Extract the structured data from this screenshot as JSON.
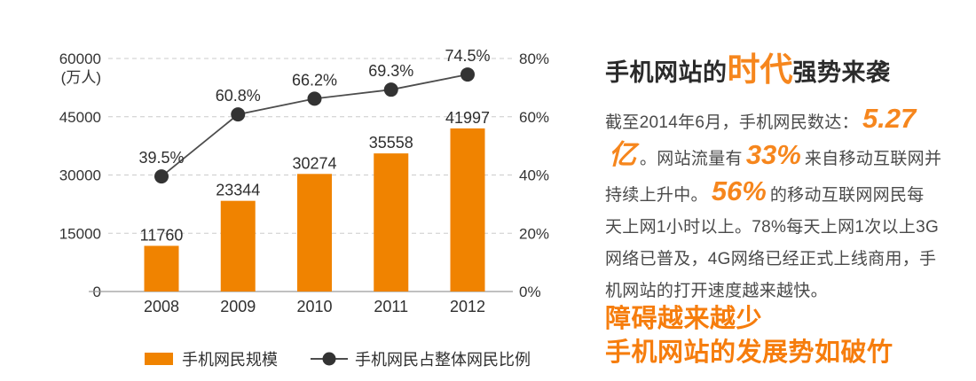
{
  "colors": {
    "bar_orange": "#F08300",
    "em_orange": "#F6861D",
    "headline_orange": "#F67D0D",
    "title_text": "#2B2B2B",
    "body_text": "#4A4A4A",
    "axis_text": "#333333",
    "value_text": "#2F2F2F",
    "gridline": "#CBCBCB",
    "axis_line": "#9B9B9B",
    "line_series": "#4D4D4D",
    "dot_fill": "#333333"
  },
  "chart_data": {
    "type": "bar+line",
    "categories": [
      "2008",
      "2009",
      "2010",
      "2011",
      "2012"
    ],
    "series": [
      {
        "name": "手机网民规模",
        "type": "bar",
        "axis": "left",
        "values": [
          11760,
          23344,
          30274,
          35558,
          41997
        ],
        "color": "#F08300"
      },
      {
        "name": "手机网民占整体网民比例",
        "type": "line",
        "axis": "right",
        "values": [
          39.5,
          60.8,
          66.2,
          69.3,
          74.5
        ],
        "labels": [
          "39.5%",
          "60.8%",
          "66.2%",
          "69.3%",
          "74.5%"
        ],
        "color": "#333333"
      }
    ],
    "left_axis": {
      "unit": "(万人)",
      "ticks": [
        "0",
        "15000",
        "30000",
        "45000",
        "60000"
      ],
      "max": 60000
    },
    "right_axis": {
      "ticks": [
        "0%",
        "20%",
        "40%",
        "60%",
        "80%"
      ],
      "max": 80
    },
    "grid": "horizontal dashed",
    "legend_position": "bottom"
  },
  "panel": {
    "title": {
      "pre": "手机网站的",
      "highlight": "时代",
      "post": "强势来袭"
    },
    "paragraph_lines": [
      [
        {
          "t": "截至2014年6月，手机网民数达："
        },
        {
          "t": "5.27",
          "em": true
        }
      ],
      [
        {
          "t": "亿",
          "em": true
        },
        {
          "t": "。网站流量有"
        },
        {
          "t": "33%",
          "em": true
        },
        {
          "t": "来自移动互联网并"
        }
      ],
      [
        {
          "t": "持续上升中。"
        },
        {
          "t": "56%",
          "em": true
        },
        {
          "t": "的移动互联网网民每"
        }
      ],
      [
        {
          "t": "天上网1小时以上。78%每天上网1次以上3G"
        }
      ],
      [
        {
          "t": "网络已普及，4G网络已经正式上线商用，手"
        }
      ],
      [
        {
          "t": "机网站的打开速度越来越快。"
        }
      ]
    ],
    "headline": [
      "障碍越来越少",
      "手机网站的发展势如破竹"
    ]
  }
}
